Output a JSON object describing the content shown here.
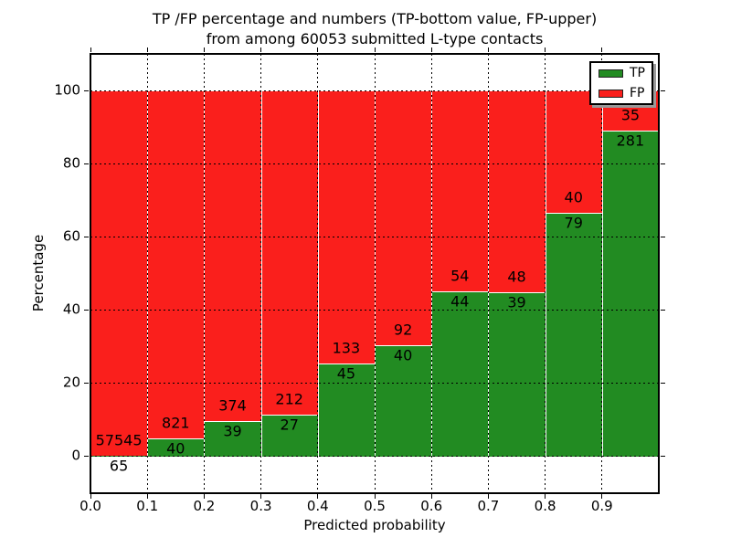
{
  "title": {
    "line1": "TP /FP percentage and numbers (TP-bottom value, FP-upper)",
    "line2": "from among 60053 submitted L-type contacts"
  },
  "axes": {
    "xlabel": "Predicted probability",
    "ylabel": "Percentage",
    "x_tick_labels": [
      "0.0",
      "0.1",
      "0.2",
      "0.3",
      "0.4",
      "0.5",
      "0.6",
      "0.7",
      "0.8",
      "0.9"
    ],
    "y_tick_labels": [
      "0",
      "20",
      "40",
      "60",
      "80",
      "100"
    ],
    "xlim": [
      0.0,
      1.0
    ],
    "ylim": [
      -10,
      110
    ],
    "grid_style": "dotted",
    "grid_on": true
  },
  "legend": {
    "position": "upper-right",
    "items": [
      {
        "label": "TP",
        "color": "#228b22"
      },
      {
        "label": "FP",
        "color": "#fa1f1c"
      }
    ]
  },
  "colors": {
    "tp_green": "#228b22",
    "fp_red": "#fa1f1c",
    "bar_edge": "#ffffff",
    "grid": "#000000",
    "background": "#ffffff"
  },
  "chart_data": {
    "type": "bar",
    "stacked": true,
    "percent_normalized": true,
    "title": "TP /FP percentage and numbers (TP-bottom value, FP-upper) from among 60053 submitted L-type contacts",
    "xlabel": "Predicted probability",
    "ylabel": "Percentage",
    "bin_width": 0.1,
    "bin_starts": [
      0.0,
      0.1,
      0.2,
      0.3,
      0.4,
      0.5,
      0.6,
      0.7,
      0.8,
      0.9
    ],
    "series": [
      {
        "name": "TP",
        "color": "#228b22",
        "counts": [
          65,
          40,
          39,
          27,
          45,
          40,
          44,
          39,
          79,
          281
        ]
      },
      {
        "name": "FP",
        "color": "#fa1f1c",
        "counts": [
          57545,
          821,
          374,
          212,
          133,
          92,
          54,
          48,
          40,
          35
        ]
      }
    ],
    "total_submitted": 60053,
    "legend_position": "upper right",
    "ylim": [
      -10,
      110
    ],
    "xlim": [
      0.0,
      1.0
    ]
  }
}
